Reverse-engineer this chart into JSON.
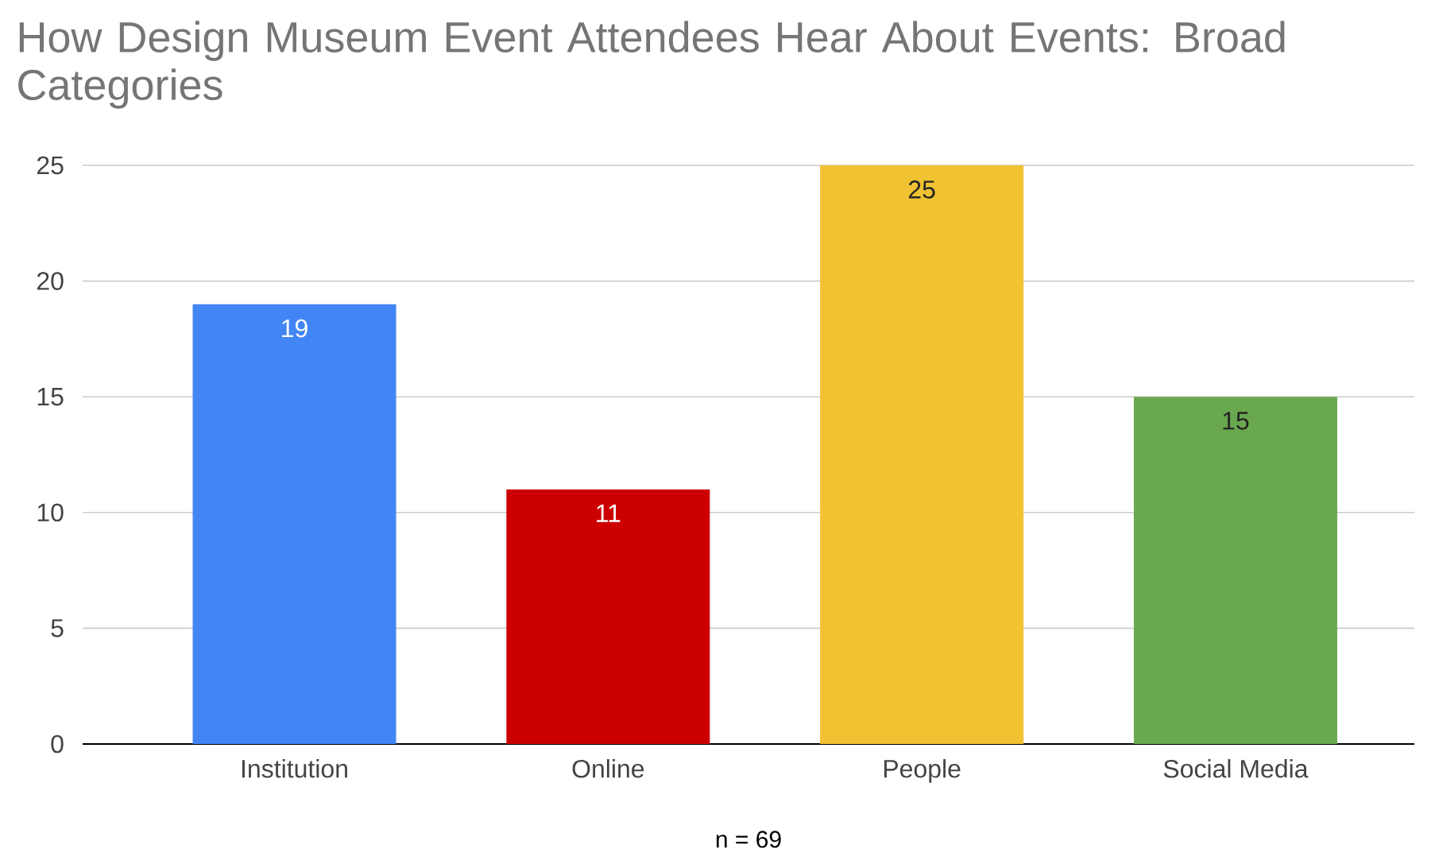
{
  "chart_data": {
    "type": "bar",
    "title": "How Design Museum Event Attendees Hear About Events: Broad Categories",
    "categories": [
      "Institution",
      "Online",
      "People",
      "Social Media"
    ],
    "values": [
      19,
      11,
      25,
      15
    ],
    "colors": [
      "#4285f4",
      "#cc0000",
      "#f1c232",
      "#6aa84f"
    ],
    "ylim": [
      0,
      25
    ],
    "yticks": [
      0,
      5,
      10,
      15,
      20,
      25
    ],
    "grid": "y",
    "data_labels": true,
    "annotations": [
      "n = 69"
    ]
  }
}
